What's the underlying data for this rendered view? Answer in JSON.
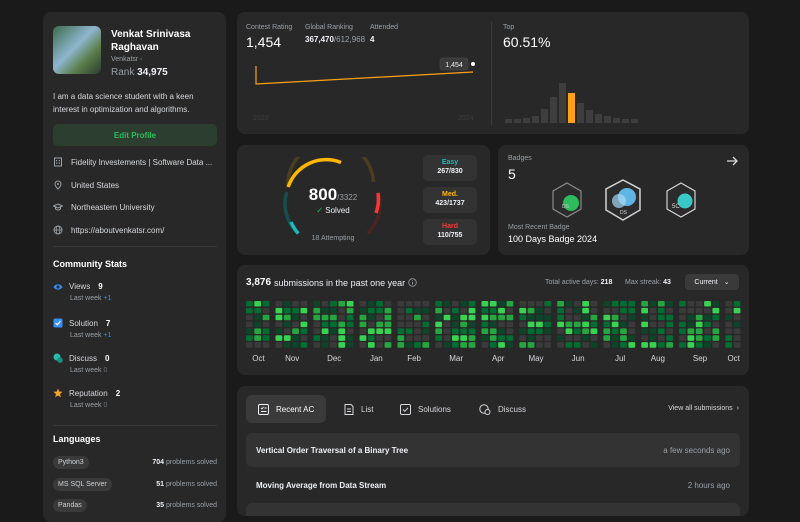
{
  "profile": {
    "name": "Venkat Srinivasa Raghavan",
    "username": "Venkatsr",
    "rank_label": "Rank",
    "rank": "34,975",
    "bio": "I am a data science student with a keen interest in optimization and algorithms.",
    "edit_label": "Edit Profile",
    "info": [
      {
        "icon": "building-icon",
        "text": "Fidelity Investements | Software Data ..."
      },
      {
        "icon": "location-icon",
        "text": "United States"
      },
      {
        "icon": "graduation-cap-icon",
        "text": "Northeastern University"
      },
      {
        "icon": "globe-icon",
        "text": "https://aboutvenkatsr.com/"
      }
    ]
  },
  "community": {
    "title": "Community Stats",
    "stats": [
      {
        "icon": "eye-icon",
        "label": "Views",
        "value": "9",
        "sub": "Last week",
        "delta": "+1",
        "color": "#3a8ef6"
      },
      {
        "icon": "checkbox-icon",
        "label": "Solution",
        "value": "7",
        "sub": "Last week",
        "delta": "+1",
        "color": "#3a8ef6"
      },
      {
        "icon": "chat-icon",
        "label": "Discuss",
        "value": "0",
        "sub": "Last week",
        "delta": "0",
        "color": "#2cbbaa"
      },
      {
        "icon": "star-icon",
        "label": "Reputation",
        "value": "2",
        "sub": "Last week",
        "delta": "0",
        "color": "#f5a623"
      }
    ]
  },
  "languages": {
    "title": "Languages",
    "items": [
      {
        "name": "Python3",
        "count": "704",
        "suffix": "problems solved"
      },
      {
        "name": "MS SQL Server",
        "count": "51",
        "suffix": "problems solved"
      },
      {
        "name": "Pandas",
        "count": "35",
        "suffix": "problems solved"
      }
    ]
  },
  "rating": {
    "contest_label": "Contest Rating",
    "contest_value": "1,454",
    "global_label": "Global Ranking",
    "global_value": "367,470",
    "global_total": "/612,968",
    "attended_label": "Attended",
    "attended_value": "4",
    "tooltip": "1,454",
    "year_start": "2023",
    "year_end": "2024",
    "top_label": "Top",
    "top_value": "60.51%"
  },
  "solved": {
    "solved": "800",
    "total": "/3322",
    "solved_label": "Solved",
    "attempting": "18 Attempting",
    "easy_label": "Easy",
    "easy_value": "267/830",
    "med_label": "Med.",
    "med_value": "423/1737",
    "hard_label": "Hard",
    "hard_value": "110/755",
    "colors": {
      "easy": "#1cbaba",
      "med": "#ffb700",
      "hard": "#f63737"
    }
  },
  "badges": {
    "title": "Badges",
    "count": "5",
    "recent_label": "Most Recent Badge",
    "recent_name": "100 Days Badge 2024",
    "badge_texts": [
      "DS",
      "DS",
      "5C"
    ]
  },
  "heatmap": {
    "count": "3,876",
    "suffix": "submissions in the past one year",
    "active_label": "Total active days:",
    "active_value": "218",
    "streak_label": "Max streak:",
    "streak_value": "43",
    "dropdown": "Current",
    "months": [
      "Oct",
      "Nov",
      "Dec",
      "Jan",
      "Feb",
      "Mar",
      "Apr",
      "May",
      "Jun",
      "Jul",
      "Aug",
      "Sep",
      "Oct"
    ]
  },
  "recent": {
    "tabs": [
      {
        "icon": "recent-ac-icon",
        "label": "Recent AC"
      },
      {
        "icon": "list-icon",
        "label": "List"
      },
      {
        "icon": "solutions-icon",
        "label": "Solutions"
      },
      {
        "icon": "discuss-icon",
        "label": "Discuss"
      }
    ],
    "view_all": "View all submissions",
    "items": [
      {
        "title": "Vertical Order Traversal of a Binary Tree",
        "time": "a few seconds ago"
      },
      {
        "title": "Moving Average from Data Stream",
        "time": "2 hours ago"
      }
    ]
  }
}
